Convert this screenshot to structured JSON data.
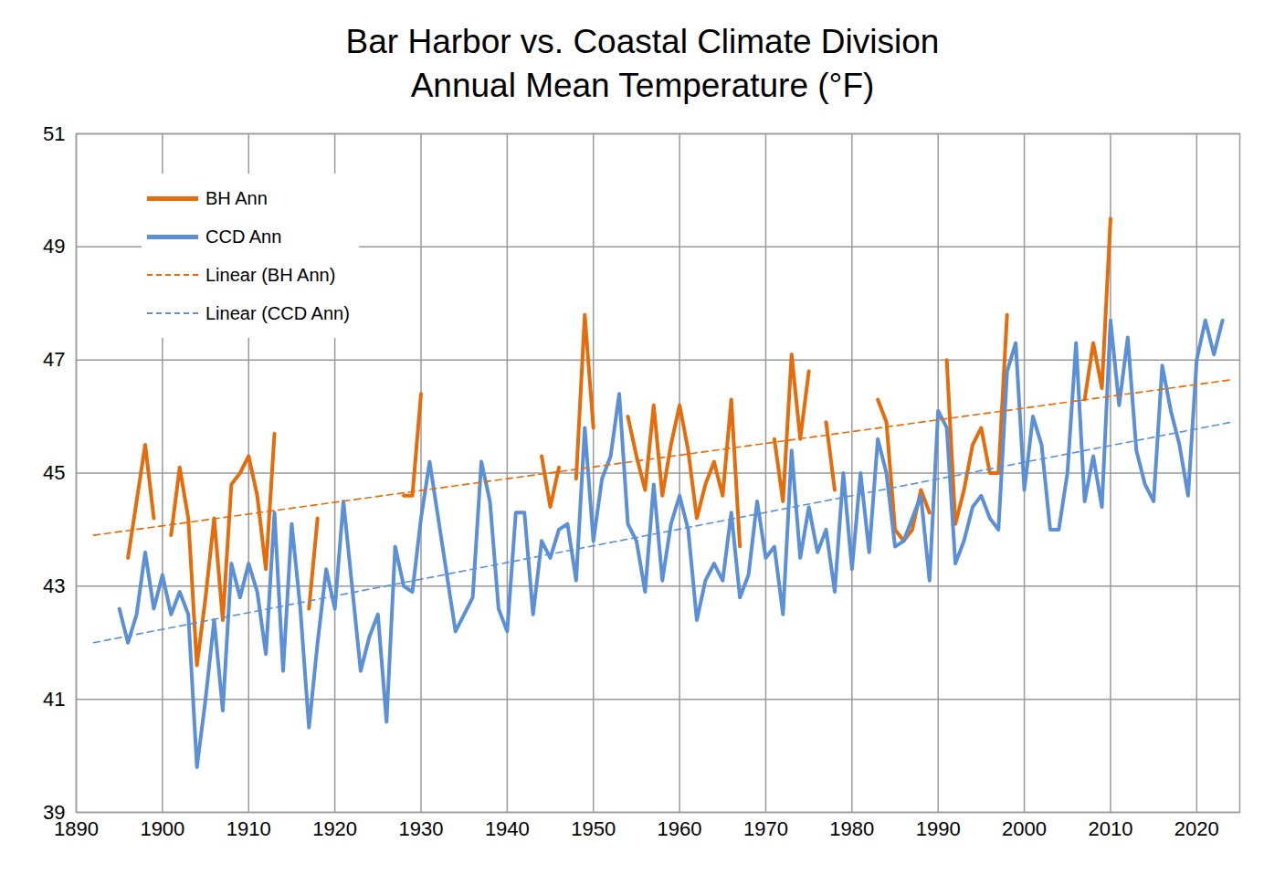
{
  "chart_data": {
    "type": "line",
    "title": "Bar Harbor vs. Coastal Climate Division",
    "subtitle": "Annual Mean Temperature (°F)",
    "x": [
      1895,
      1896,
      1897,
      1898,
      1899,
      1900,
      1901,
      1902,
      1903,
      1904,
      1905,
      1906,
      1907,
      1908,
      1909,
      1910,
      1911,
      1912,
      1913,
      1914,
      1915,
      1916,
      1917,
      1918,
      1919,
      1920,
      1921,
      1922,
      1923,
      1924,
      1925,
      1926,
      1927,
      1928,
      1929,
      1930,
      1931,
      1932,
      1933,
      1934,
      1935,
      1936,
      1937,
      1938,
      1939,
      1940,
      1941,
      1942,
      1943,
      1944,
      1945,
      1946,
      1947,
      1948,
      1949,
      1950,
      1951,
      1952,
      1953,
      1954,
      1955,
      1956,
      1957,
      1958,
      1959,
      1960,
      1961,
      1962,
      1963,
      1964,
      1965,
      1966,
      1967,
      1968,
      1969,
      1970,
      1971,
      1972,
      1973,
      1974,
      1975,
      1976,
      1977,
      1978,
      1979,
      1980,
      1981,
      1982,
      1983,
      1984,
      1985,
      1986,
      1987,
      1988,
      1989,
      1990,
      1991,
      1992,
      1993,
      1994,
      1995,
      1996,
      1997,
      1998,
      1999,
      2000,
      2001,
      2002,
      2003,
      2004,
      2005,
      2006,
      2007,
      2008,
      2009,
      2010,
      2011,
      2012,
      2013,
      2014,
      2015,
      2016,
      2017,
      2018,
      2019,
      2020,
      2021,
      2022,
      2023
    ],
    "series": [
      {
        "name": "BH Ann",
        "color": "#e46c0a",
        "line_style": "solid",
        "values": [
          null,
          43.5,
          44.5,
          45.5,
          44.2,
          null,
          43.9,
          45.1,
          44.2,
          41.6,
          42.8,
          44.2,
          42.4,
          44.8,
          45.0,
          45.3,
          44.6,
          43.3,
          45.7,
          null,
          null,
          null,
          42.6,
          44.2,
          null,
          null,
          null,
          null,
          null,
          null,
          null,
          null,
          null,
          44.6,
          44.6,
          46.4,
          null,
          null,
          null,
          null,
          null,
          null,
          null,
          null,
          null,
          null,
          null,
          null,
          null,
          45.3,
          44.4,
          45.1,
          null,
          44.9,
          47.8,
          45.8,
          null,
          null,
          null,
          46.0,
          45.3,
          44.7,
          46.2,
          44.6,
          45.5,
          46.2,
          45.4,
          44.2,
          44.8,
          45.2,
          44.6,
          46.3,
          43.7,
          null,
          null,
          null,
          45.6,
          44.5,
          47.1,
          45.6,
          46.8,
          null,
          45.9,
          44.7,
          null,
          null,
          null,
          null,
          46.3,
          45.9,
          44.0,
          43.8,
          44.0,
          44.7,
          44.3,
          null,
          47.0,
          44.1,
          44.7,
          45.5,
          45.8,
          45.0,
          45.0,
          47.8,
          null,
          null,
          null,
          null,
          null,
          null,
          null,
          null,
          46.3,
          47.3,
          46.5,
          49.5,
          null,
          null,
          null,
          null,
          null,
          null,
          null,
          null,
          null,
          null,
          null,
          null,
          null
        ]
      },
      {
        "name": "CCD Ann",
        "color": "#5b8fd6",
        "line_style": "solid",
        "values": [
          42.6,
          42.0,
          42.5,
          43.6,
          42.6,
          43.2,
          42.5,
          42.9,
          42.5,
          39.8,
          41.0,
          42.4,
          40.8,
          43.4,
          42.8,
          43.4,
          42.9,
          41.8,
          44.3,
          41.5,
          44.1,
          42.6,
          40.5,
          42.0,
          43.3,
          42.6,
          44.5,
          43.0,
          41.5,
          42.1,
          42.5,
          40.6,
          43.7,
          43.0,
          42.9,
          44.2,
          45.2,
          44.2,
          43.2,
          42.2,
          42.5,
          42.8,
          45.2,
          44.5,
          42.6,
          42.2,
          44.3,
          44.3,
          42.5,
          43.8,
          43.5,
          44.0,
          44.1,
          43.1,
          45.8,
          43.8,
          44.9,
          45.3,
          46.4,
          44.1,
          43.8,
          42.9,
          44.8,
          43.1,
          44.1,
          44.6,
          44.0,
          42.4,
          43.1,
          43.4,
          43.1,
          44.3,
          42.8,
          43.2,
          44.5,
          43.5,
          43.7,
          42.5,
          45.4,
          43.5,
          44.4,
          43.6,
          44.0,
          42.9,
          45.0,
          43.3,
          45.0,
          43.6,
          45.6,
          45.0,
          43.7,
          43.8,
          44.2,
          44.6,
          43.1,
          46.1,
          45.8,
          43.4,
          43.8,
          44.4,
          44.6,
          44.2,
          44.0,
          46.8,
          47.3,
          44.7,
          46.0,
          45.5,
          44.0,
          44.0,
          45.0,
          47.3,
          44.5,
          45.3,
          44.4,
          47.7,
          46.2,
          47.4,
          45.4,
          44.8,
          44.5,
          46.9,
          46.1,
          45.5,
          44.6,
          47.0,
          47.7,
          47.1,
          47.7
        ]
      },
      {
        "name": "Linear (BH Ann)",
        "color": "#e46c0a",
        "line_style": "dashed",
        "x": [
          1892,
          2024
        ],
        "values": [
          43.9,
          46.65
        ]
      },
      {
        "name": "Linear (CCD Ann)",
        "color": "#5b8fd6",
        "line_style": "dashed",
        "x": [
          1892,
          2024
        ],
        "values": [
          42.0,
          45.9
        ]
      }
    ],
    "xlim": [
      1890,
      2025
    ],
    "xticks": [
      1890,
      1900,
      1910,
      1920,
      1930,
      1940,
      1950,
      1960,
      1970,
      1980,
      1990,
      2000,
      2010,
      2020
    ],
    "ylim": [
      39,
      51
    ],
    "yticks": [
      39,
      41,
      43,
      45,
      47,
      49,
      51
    ],
    "grid": true,
    "legend": "top-left"
  }
}
